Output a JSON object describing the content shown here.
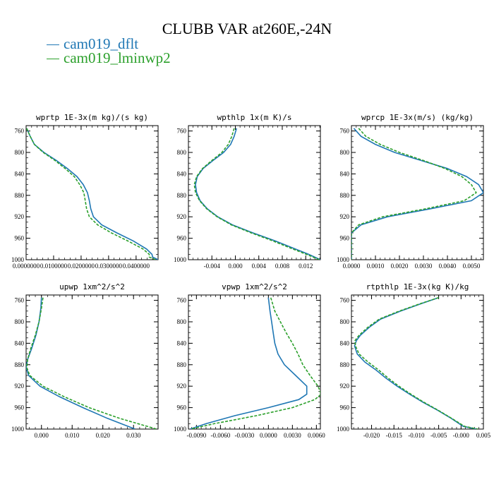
{
  "figure": {
    "title": "CLUBB VAR at260E,-24N",
    "legend": [
      {
        "label": "cam019_dflt",
        "color": "#1f77b4",
        "dash": false
      },
      {
        "label": "cam019_lminwp2",
        "color": "#2ca02c",
        "dash": true
      }
    ]
  },
  "chart_data": [
    {
      "type": "line",
      "title": "wprtp  1E-3x(m kg)/(s kg)",
      "xlim": [
        0,
        0.048
      ],
      "ylim": [
        1000,
        750
      ],
      "xticks": [
        0,
        0.01,
        0.02,
        0.03,
        0.04
      ],
      "xtick_labels": [
        "0.0000000",
        "0.0100000",
        "0.0200000",
        "0.0300000",
        "0.0400000"
      ],
      "yticks": [
        760,
        800,
        840,
        880,
        920,
        960,
        1000
      ],
      "series": [
        {
          "name": "cam019_dflt",
          "pressure": [
            755,
            770,
            785,
            800,
            815,
            830,
            845,
            860,
            875,
            890,
            905,
            920,
            935,
            950,
            965,
            980,
            990,
            995,
            1000
          ],
          "values": [
            0.0002,
            0.0015,
            0.003,
            0.0065,
            0.011,
            0.015,
            0.0185,
            0.0208,
            0.0223,
            0.023,
            0.0235,
            0.0245,
            0.0275,
            0.033,
            0.039,
            0.0438,
            0.0458,
            0.046,
            0.048
          ]
        },
        {
          "name": "cam019_lminwp2",
          "pressure": [
            755,
            770,
            785,
            800,
            815,
            830,
            845,
            860,
            875,
            890,
            905,
            920,
            935,
            950,
            965,
            980,
            990,
            995,
            1000
          ],
          "values": [
            0.0002,
            0.0015,
            0.003,
            0.0062,
            0.0105,
            0.0142,
            0.0175,
            0.0195,
            0.021,
            0.0215,
            0.022,
            0.023,
            0.026,
            0.031,
            0.037,
            0.0425,
            0.0448,
            0.0448,
            0.047
          ]
        }
      ]
    },
    {
      "type": "line",
      "title": "wpthlp  1x(m K)/s",
      "xlim": [
        -0.008,
        0.0145
      ],
      "ylim": [
        1000,
        750
      ],
      "xticks": [
        -0.004,
        0.0,
        0.004,
        0.008,
        0.012
      ],
      "xtick_labels": [
        "-0.004",
        "0.000",
        "0.004",
        "0.008",
        "0.012"
      ],
      "yticks": [
        760,
        800,
        840,
        880,
        920,
        960,
        1000
      ],
      "series": [
        {
          "name": "cam019_dflt",
          "pressure": [
            755,
            770,
            785,
            800,
            815,
            830,
            845,
            860,
            875,
            890,
            905,
            920,
            935,
            950,
            965,
            980,
            990,
            1000
          ],
          "values": [
            0.0002,
            -0.0002,
            -0.0008,
            -0.002,
            -0.0038,
            -0.0055,
            -0.0065,
            -0.0068,
            -0.0066,
            -0.006,
            -0.0048,
            -0.003,
            -0.0005,
            0.003,
            0.0068,
            0.0102,
            0.0125,
            0.0145
          ]
        },
        {
          "name": "cam019_lminwp2",
          "pressure": [
            755,
            770,
            785,
            800,
            815,
            830,
            845,
            860,
            875,
            890,
            905,
            920,
            935,
            950,
            965,
            980,
            990,
            1000
          ],
          "values": [
            -0.0002,
            -0.0006,
            -0.0012,
            -0.0023,
            -0.004,
            -0.0056,
            -0.0066,
            -0.007,
            -0.0068,
            -0.0061,
            -0.0049,
            -0.0031,
            -0.0007,
            0.0027,
            0.0064,
            0.0098,
            0.0121,
            0.0143
          ]
        }
      ]
    },
    {
      "type": "line",
      "title": "wprcp  1E-3x(m/s) (kg/kg)",
      "xlim": [
        0,
        0.0055
      ],
      "ylim": [
        1000,
        750
      ],
      "xticks": [
        0,
        0.001,
        0.002,
        0.003,
        0.004,
        0.005
      ],
      "xtick_labels": [
        "0.0000",
        "0.0010",
        "0.0020",
        "0.0030",
        "0.0040",
        "0.0050"
      ],
      "yticks": [
        760,
        800,
        840,
        880,
        920,
        960,
        1000
      ],
      "series": [
        {
          "name": "cam019_dflt",
          "pressure": [
            755,
            770,
            785,
            800,
            815,
            830,
            845,
            860,
            875,
            890,
            905,
            920,
            935,
            950,
            965,
            980,
            1000
          ],
          "values": [
            0.0001,
            0.0004,
            0.001,
            0.0018,
            0.0029,
            0.004,
            0.0048,
            0.0053,
            0.0055,
            0.005,
            0.0033,
            0.0015,
            0.0004,
            0.0,
            0.0,
            0.0,
            0.0
          ]
        },
        {
          "name": "cam019_lminwp2",
          "pressure": [
            755,
            770,
            785,
            800,
            815,
            830,
            845,
            860,
            875,
            890,
            905,
            920,
            935,
            950,
            965,
            980,
            1000
          ],
          "values": [
            0.0003,
            0.0006,
            0.0012,
            0.002,
            0.003,
            0.0039,
            0.0046,
            0.005,
            0.0052,
            0.0047,
            0.0031,
            0.0013,
            0.0003,
            0.0,
            0.0,
            0.0,
            0.0
          ]
        }
      ]
    },
    {
      "type": "line",
      "title": "upwp  1xm^2/s^2",
      "xlim": [
        -0.005,
        0.038
      ],
      "ylim": [
        1000,
        750
      ],
      "xticks": [
        0,
        0.01,
        0.02,
        0.03
      ],
      "xtick_labels": [
        "0.000",
        "0.010",
        "0.020",
        "0.030"
      ],
      "yticks": [
        760,
        800,
        840,
        880,
        920,
        960,
        1000
      ],
      "series": [
        {
          "name": "cam019_dflt",
          "pressure": [
            755,
            775,
            800,
            825,
            850,
            870,
            885,
            900,
            920,
            940,
            960,
            980,
            1000
          ],
          "values": [
            0.0,
            -0.0002,
            -0.0008,
            -0.0018,
            -0.0032,
            -0.0045,
            -0.005,
            -0.0042,
            -0.0005,
            0.006,
            0.0135,
            0.0215,
            0.0305
          ]
        },
        {
          "name": "cam019_lminwp2",
          "pressure": [
            755,
            775,
            800,
            825,
            850,
            870,
            885,
            900,
            920,
            940,
            960,
            980,
            1000
          ],
          "values": [
            0.0005,
            0.0,
            -0.0008,
            -0.002,
            -0.0035,
            -0.0045,
            -0.0048,
            -0.0038,
            0.0005,
            0.0075,
            0.0155,
            0.0255,
            0.0375
          ]
        }
      ]
    },
    {
      "type": "line",
      "title": "vpwp  1xm^2/s^2",
      "xlim": [
        -0.01,
        0.0065
      ],
      "ylim": [
        1000,
        750
      ],
      "xticks": [
        -0.009,
        -0.006,
        -0.003,
        0.0,
        0.003,
        0.006
      ],
      "xtick_labels": [
        "-0.0090",
        "-0.0060",
        "-0.0030",
        "0.0000",
        "0.0030",
        "0.0060"
      ],
      "yticks": [
        760,
        800,
        840,
        880,
        920,
        960,
        1000
      ],
      "series": [
        {
          "name": "cam019_dflt",
          "pressure": [
            755,
            780,
            800,
            820,
            840,
            860,
            880,
            900,
            920,
            935,
            945,
            960,
            975,
            990,
            1000
          ],
          "values": [
            0.0,
            0.0002,
            0.0004,
            0.0006,
            0.0008,
            0.0012,
            0.002,
            0.0034,
            0.0048,
            0.0048,
            0.0038,
            0.0,
            -0.0042,
            -0.0078,
            -0.0098
          ]
        },
        {
          "name": "cam019_lminwp2",
          "pressure": [
            755,
            780,
            800,
            820,
            840,
            860,
            880,
            900,
            920,
            935,
            945,
            960,
            975,
            990,
            1000
          ],
          "values": [
            0.0003,
            0.0008,
            0.0015,
            0.0022,
            0.003,
            0.0037,
            0.0043,
            0.0052,
            0.0062,
            0.0066,
            0.0058,
            0.003,
            -0.0015,
            -0.0068,
            -0.0097
          ]
        }
      ]
    },
    {
      "type": "line",
      "title": "rtpthlp  1E-3x(kg K)/kg",
      "xlim": [
        -0.0245,
        0.005
      ],
      "ylim": [
        1000,
        750
      ],
      "xticks": [
        -0.02,
        -0.015,
        -0.01,
        -0.005,
        0.0,
        0.005
      ],
      "xtick_labels": [
        "-0.020",
        "-0.015",
        "-0.010",
        "-0.005",
        "-0.000",
        "0.005"
      ],
      "yticks": [
        760,
        800,
        840,
        880,
        920,
        960,
        1000
      ],
      "series": [
        {
          "name": "cam019_dflt",
          "pressure": [
            755,
            765,
            780,
            795,
            810,
            825,
            835,
            845,
            860,
            875,
            890,
            905,
            920,
            935,
            950,
            965,
            980,
            995,
            1000
          ],
          "values": [
            -0.005,
            -0.0085,
            -0.0135,
            -0.018,
            -0.0205,
            -0.0225,
            -0.0234,
            -0.0238,
            -0.0232,
            -0.0215,
            -0.019,
            -0.0168,
            -0.0143,
            -0.0115,
            -0.0085,
            -0.0052,
            -0.0022,
            0.0005,
            0.0035
          ]
        },
        {
          "name": "cam019_lminwp2",
          "pressure": [
            755,
            765,
            780,
            795,
            810,
            825,
            835,
            845,
            860,
            875,
            890,
            905,
            920,
            935,
            950,
            965,
            980,
            995,
            1000
          ],
          "values": [
            -0.005,
            -0.0087,
            -0.0138,
            -0.0183,
            -0.0208,
            -0.0228,
            -0.0237,
            -0.0236,
            -0.0228,
            -0.0208,
            -0.0184,
            -0.0163,
            -0.0139,
            -0.0112,
            -0.0083,
            -0.0051,
            -0.0021,
            0.0008,
            0.0038
          ]
        }
      ]
    }
  ]
}
